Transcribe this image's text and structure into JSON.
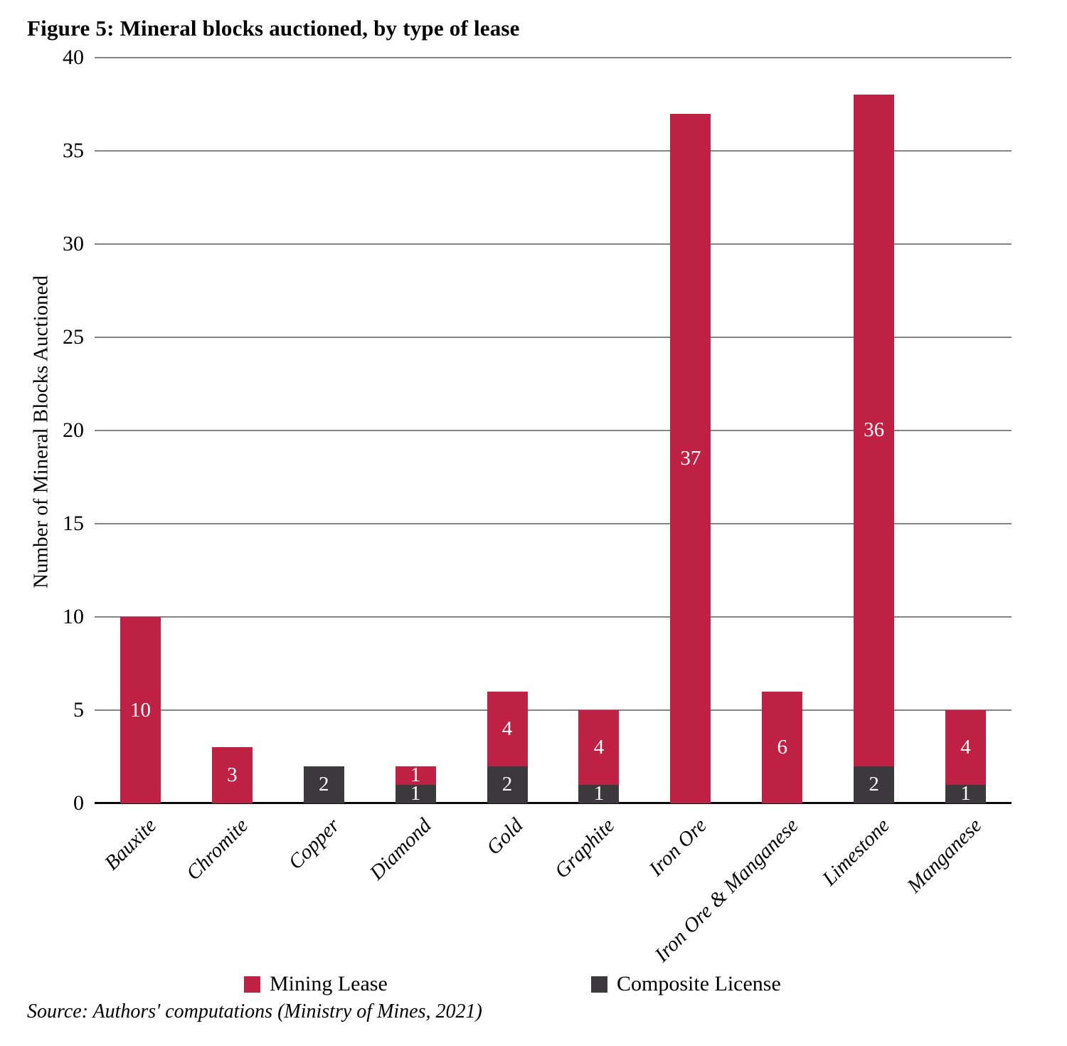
{
  "figure": {
    "title": "Figure 5: Mineral blocks auctioned, by type of lease",
    "source": "Source: Authors' computations (Ministry of Mines, 2021)"
  },
  "colors": {
    "mining_lease": "#BE2143",
    "composite_license": "#3B393B",
    "gridline": "#848484",
    "axis": "#0A0A0A",
    "bar_value_text": "#FFFFFF"
  },
  "legend": {
    "items": [
      {
        "label": "Mining Lease",
        "color": "#BE2143"
      },
      {
        "label": "Composite License",
        "color": "#3B393B"
      }
    ]
  },
  "chart_data": {
    "type": "bar",
    "stacked": true,
    "title": "Figure 5: Mineral blocks auctioned, by type of lease",
    "categories": [
      "Bauxite",
      "Chromite",
      "Copper",
      "Diamond",
      "Gold",
      "Graphite",
      "Iron Ore",
      "Iron Ore & Manganese",
      "Limestone",
      "Manganese"
    ],
    "series": [
      {
        "name": "Composite License",
        "color": "#3B393B",
        "values": [
          0,
          0,
          2,
          1,
          2,
          1,
          0,
          0,
          2,
          1
        ]
      },
      {
        "name": "Mining Lease",
        "color": "#BE2143",
        "values": [
          10,
          3,
          0,
          1,
          4,
          4,
          37,
          6,
          36,
          4
        ]
      }
    ],
    "totals": [
      10,
      3,
      2,
      2,
      6,
      5,
      37,
      6,
      38,
      5
    ],
    "xlabel": "",
    "ylabel": "Number of Mineral Blocks Auctioned",
    "ylim": [
      0,
      40
    ],
    "ytick_step": 5,
    "yticks": [
      0,
      5,
      10,
      15,
      20,
      25,
      30,
      35,
      40
    ],
    "grid": true,
    "data_labels": true,
    "legend_position": "bottom"
  }
}
